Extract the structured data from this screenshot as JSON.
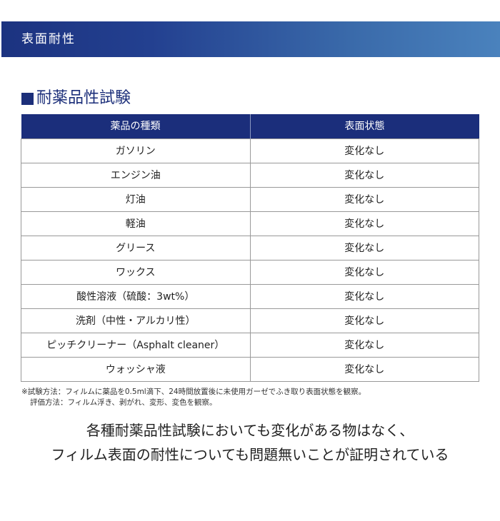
{
  "banner": {
    "title": "表面耐性"
  },
  "section": {
    "title": "耐薬品性試験"
  },
  "table": {
    "headers": [
      "薬品の種類",
      "表面状態"
    ],
    "rows": [
      [
        "ガソリン",
        "変化なし"
      ],
      [
        "エンジン油",
        "変化なし"
      ],
      [
        "灯油",
        "変化なし"
      ],
      [
        "軽油",
        "変化なし"
      ],
      [
        "グリース",
        "変化なし"
      ],
      [
        "ワックス",
        "変化なし"
      ],
      [
        "酸性溶液（硫酸：3wt%）",
        "変化なし"
      ],
      [
        "洗剤（中性・アルカリ性）",
        "変化なし"
      ],
      [
        "ピッチクリーナー（Asphalt cleaner）",
        "変化なし"
      ],
      [
        "ウォッシャ液",
        "変化なし"
      ]
    ]
  },
  "notes": [
    "※試験方法：フィルムに薬品を0.5ml滴下、24時間放置後に未使用ガーゼでふき取り表面状態を観察。",
    "評価方法：フィルム浮き、剥がれ、変形、変色を観察。"
  ],
  "conclusion": [
    "各種耐薬品性試験においても変化がある物はなく、",
    "フィルム表面の耐性についても問題無いことが証明されている"
  ],
  "colors": {
    "navy": "#1b2e7b",
    "gradient_end": "#4a82bd"
  }
}
